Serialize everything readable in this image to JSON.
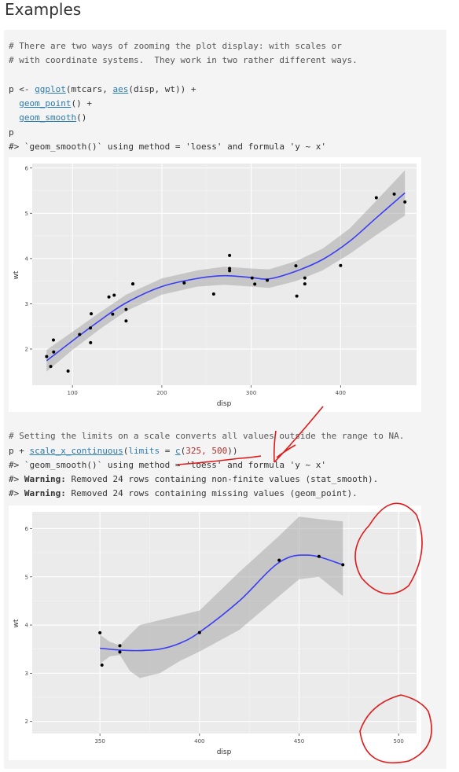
{
  "title": "Examples",
  "code1": {
    "comment1": "# There are two ways of zooming the plot display: with scales or",
    "comment2": "# with coordinate systems.  They work in two rather different ways.",
    "line_p_assign_prefix": "p <- ",
    "fn_ggplot": "ggplot",
    "args_ggplot": "(mtcars, ",
    "fn_aes": "aes",
    "args_aes": "(disp, wt)) +",
    "indent": "  ",
    "fn_geom_point": "geom_point",
    "geom_point_tail": "() +",
    "fn_geom_smooth": "geom_smooth",
    "geom_smooth_tail": "()",
    "line_p": "p",
    "msg": "#> `geom_smooth()` using method = 'loess' and formula 'y ~ x'"
  },
  "code2": {
    "comment": "# Setting the limits on a scale converts all values outside the range to NA.",
    "prefix": "p + ",
    "fn_scale": "scale_x_continuous",
    "open": "(",
    "arg_limits": "limits",
    "eq": " = ",
    "fn_c": "c",
    "num_open": "(",
    "num_vals": "325, 500",
    "close": "))",
    "msg": "#> `geom_smooth()` using method = 'loess' and formula 'y ~ x'",
    "warn_prefix": "#> ",
    "warn_label": "Warning:",
    "warn1": " Removed 24 rows containing non-finite values (stat_smooth).",
    "warn2": " Removed 24 rows containing missing values (geom_point)."
  },
  "chart_data": [
    {
      "type": "scatter",
      "xlabel": "disp",
      "ylabel": "wt",
      "xlim": [
        55,
        485
      ],
      "ylim": [
        1.2,
        6.1
      ],
      "xticks": [
        100,
        200,
        300,
        400
      ],
      "yticks": [
        2,
        3,
        4,
        5,
        6
      ],
      "grid": true,
      "points": [
        [
          71.1,
          1.835
        ],
        [
          75.7,
          1.615
        ],
        [
          78.7,
          2.2
        ],
        [
          79,
          1.935
        ],
        [
          95.1,
          1.513
        ],
        [
          108,
          2.32
        ],
        [
          120.1,
          2.465
        ],
        [
          120.3,
          2.14
        ],
        [
          121,
          2.78
        ],
        [
          140.8,
          3.15
        ],
        [
          145,
          2.77
        ],
        [
          146.7,
          3.19
        ],
        [
          160,
          2.62
        ],
        [
          160,
          2.875
        ],
        [
          167.6,
          3.44
        ],
        [
          167.6,
          3.44
        ],
        [
          225,
          3.46
        ],
        [
          258,
          3.215
        ],
        [
          275.8,
          4.07
        ],
        [
          275.8,
          3.73
        ],
        [
          275.8,
          3.78
        ],
        [
          301,
          3.57
        ],
        [
          304,
          3.435
        ],
        [
          318,
          3.52
        ],
        [
          350,
          3.84
        ],
        [
          351,
          3.17
        ],
        [
          360,
          3.44
        ],
        [
          360,
          3.57
        ],
        [
          400,
          3.845
        ],
        [
          440,
          5.345
        ],
        [
          460,
          5.424
        ],
        [
          472,
          5.25
        ]
      ],
      "smooth": [
        [
          71.1,
          1.74
        ],
        [
          100,
          2.18
        ],
        [
          130,
          2.62
        ],
        [
          160,
          3.02
        ],
        [
          200,
          3.38
        ],
        [
          240,
          3.56
        ],
        [
          270,
          3.62
        ],
        [
          300,
          3.58
        ],
        [
          320,
          3.55
        ],
        [
          350,
          3.72
        ],
        [
          380,
          3.98
        ],
        [
          410,
          4.38
        ],
        [
          440,
          4.9
        ],
        [
          472,
          5.45
        ]
      ],
      "band": [
        [
          71.1,
          1.5,
          1.98
        ],
        [
          100,
          1.98,
          2.38
        ],
        [
          130,
          2.43,
          2.8
        ],
        [
          160,
          2.84,
          3.2
        ],
        [
          200,
          3.2,
          3.56
        ],
        [
          240,
          3.38,
          3.74
        ],
        [
          270,
          3.42,
          3.82
        ],
        [
          300,
          3.38,
          3.78
        ],
        [
          320,
          3.35,
          3.76
        ],
        [
          350,
          3.5,
          3.94
        ],
        [
          380,
          3.74,
          4.22
        ],
        [
          410,
          4.1,
          4.66
        ],
        [
          440,
          4.52,
          5.28
        ],
        [
          472,
          4.95,
          5.95
        ]
      ]
    },
    {
      "type": "scatter",
      "xlabel": "disp",
      "ylabel": "wt",
      "xlim": [
        316,
        509
      ],
      "ylim": [
        1.75,
        6.35
      ],
      "xticks": [
        350,
        400,
        450,
        500
      ],
      "yticks": [
        2,
        3,
        4,
        5,
        6
      ],
      "grid": true,
      "points": [
        [
          350,
          3.84
        ],
        [
          351,
          3.17
        ],
        [
          360,
          3.44
        ],
        [
          360,
          3.57
        ],
        [
          400,
          3.845
        ],
        [
          440,
          5.345
        ],
        [
          460,
          5.424
        ],
        [
          472,
          5.25
        ]
      ],
      "smooth": [
        [
          350,
          3.52
        ],
        [
          360,
          3.48
        ],
        [
          370,
          3.47
        ],
        [
          380,
          3.5
        ],
        [
          390,
          3.62
        ],
        [
          400,
          3.85
        ],
        [
          420,
          4.5
        ],
        [
          440,
          5.3
        ],
        [
          455,
          5.45
        ],
        [
          472,
          5.25
        ]
      ],
      "band": [
        [
          350,
          3.2,
          3.8
        ],
        [
          355,
          3.35,
          3.65
        ],
        [
          360,
          3.38,
          3.58
        ],
        [
          365,
          3.05,
          3.8
        ],
        [
          370,
          2.9,
          4.0
        ],
        [
          380,
          3.0,
          4.1
        ],
        [
          390,
          3.25,
          4.2
        ],
        [
          400,
          3.45,
          4.3
        ],
        [
          420,
          3.9,
          5.1
        ],
        [
          440,
          4.6,
          5.85
        ],
        [
          450,
          4.95,
          6.25
        ],
        [
          460,
          5.0,
          6.2
        ],
        [
          472,
          4.6,
          6.15
        ]
      ]
    }
  ]
}
